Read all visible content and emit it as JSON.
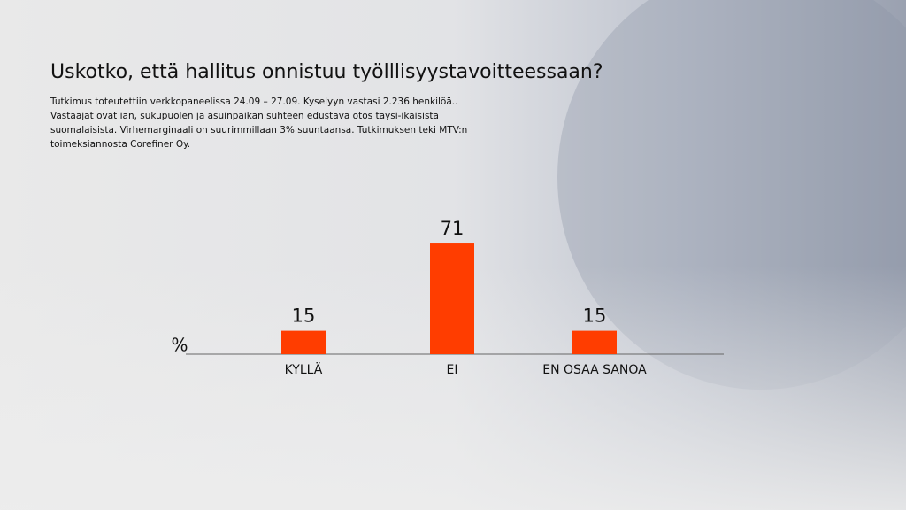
{
  "chart_data": {
    "type": "bar",
    "title": "Uskotko, että hallitus onnistuu työlllisyystavoitteessaan?",
    "subtitle": [
      "Tutkimus toteutettiin verkkopaneelissa 24.09 – 27.09. Kyselyyn vastasi 2.236 henkilöä..",
      "Vastaajat ovat iän, sukupuolen ja asuinpaikan suhteen edustava otos täysi-ikäisistä",
      "suomalaisista. Virhemarginaali on suurimmillaan 3% suuntaansa. Tutkimuksen teki MTV:n",
      "toimeksiannosta Corefiner Oy."
    ],
    "unit_label": "%",
    "categories": [
      "KYLLÄ",
      "EI",
      "EN OSAA SANOA"
    ],
    "values": [
      15,
      71,
      15
    ],
    "color": "#ff3d00"
  }
}
